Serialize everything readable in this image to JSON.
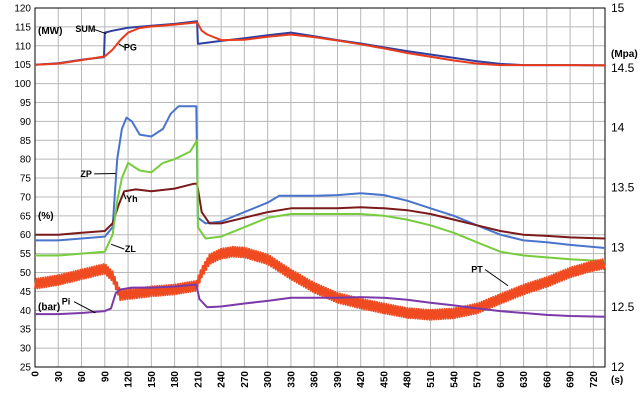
{
  "chart_data": {
    "type": "line",
    "grid": true,
    "legend": "none",
    "x_unit": "(s)",
    "x_ticks": [
      0,
      30,
      60,
      90,
      120,
      150,
      180,
      210,
      240,
      270,
      300,
      330,
      360,
      390,
      420,
      450,
      480,
      510,
      540,
      570,
      600,
      630,
      660,
      690,
      720
    ],
    "left_axis": {
      "ticks": [
        25,
        30,
        35,
        40,
        45,
        50,
        55,
        60,
        65,
        70,
        75,
        80,
        85,
        90,
        95,
        100,
        105,
        110,
        115,
        120
      ],
      "range": [
        25,
        120
      ]
    },
    "right_axis": {
      "ticks": [
        "12",
        "12.5",
        "13",
        "13.5",
        "14",
        "14.5",
        "15"
      ],
      "range": [
        12,
        15
      ]
    },
    "unit_labels": {
      "mw": "(MW)",
      "pct": "(%)",
      "bar": "(bar)",
      "mpa": "(Mpa)"
    },
    "series": [
      {
        "name": "SUM",
        "color": "#2e3fa0",
        "points": [
          [
            0,
            105
          ],
          [
            30,
            105.4
          ],
          [
            60,
            106.3
          ],
          [
            89,
            107
          ],
          [
            90,
            113.5
          ],
          [
            100,
            114
          ],
          [
            120,
            114.8
          ],
          [
            150,
            115.3
          ],
          [
            180,
            115.8
          ],
          [
            209,
            116.5
          ],
          [
            210,
            110.5
          ],
          [
            240,
            111.3
          ],
          [
            270,
            112
          ],
          [
            300,
            112.8
          ],
          [
            330,
            113.5
          ],
          [
            360,
            112.5
          ],
          [
            390,
            111.5
          ],
          [
            420,
            110.6
          ],
          [
            450,
            109.6
          ],
          [
            480,
            108.6
          ],
          [
            510,
            107.7
          ],
          [
            540,
            106.8
          ],
          [
            570,
            105.9
          ],
          [
            600,
            105.2
          ],
          [
            630,
            104.9
          ],
          [
            660,
            104.9
          ],
          [
            690,
            104.9
          ],
          [
            735,
            104.8
          ]
        ]
      },
      {
        "name": "PG",
        "color": "#e83a1c",
        "points": [
          [
            0,
            105
          ],
          [
            30,
            105.3
          ],
          [
            60,
            106.2
          ],
          [
            90,
            107.2
          ],
          [
            100,
            109
          ],
          [
            110,
            111.5
          ],
          [
            120,
            113.5
          ],
          [
            135,
            114.7
          ],
          [
            150,
            115.1
          ],
          [
            180,
            115.6
          ],
          [
            209,
            116.2
          ],
          [
            215,
            114
          ],
          [
            222,
            113
          ],
          [
            240,
            111.5
          ],
          [
            270,
            111.6
          ],
          [
            300,
            112.4
          ],
          [
            330,
            113
          ],
          [
            360,
            112.3
          ],
          [
            390,
            111.4
          ],
          [
            420,
            110.4
          ],
          [
            450,
            109.3
          ],
          [
            480,
            108.1
          ],
          [
            510,
            107.1
          ],
          [
            540,
            106.1
          ],
          [
            570,
            105.3
          ],
          [
            600,
            104.9
          ],
          [
            630,
            104.9
          ],
          [
            660,
            104.9
          ],
          [
            690,
            104.9
          ],
          [
            735,
            104.8
          ]
        ]
      },
      {
        "name": "ZP",
        "color": "#4a74cc",
        "points": [
          [
            0,
            58.5
          ],
          [
            30,
            58.5
          ],
          [
            60,
            59
          ],
          [
            90,
            59.5
          ],
          [
            100,
            62
          ],
          [
            106,
            80
          ],
          [
            112,
            88
          ],
          [
            118,
            91
          ],
          [
            125,
            90
          ],
          [
            135,
            86.5
          ],
          [
            150,
            86
          ],
          [
            165,
            88
          ],
          [
            175,
            92
          ],
          [
            185,
            94
          ],
          [
            208,
            94
          ],
          [
            210,
            64.5
          ],
          [
            220,
            63
          ],
          [
            240,
            63.5
          ],
          [
            270,
            66
          ],
          [
            300,
            68.5
          ],
          [
            315,
            70.3
          ],
          [
            330,
            70.3
          ],
          [
            360,
            70.3
          ],
          [
            390,
            70.5
          ],
          [
            420,
            71
          ],
          [
            450,
            70.5
          ],
          [
            480,
            69
          ],
          [
            510,
            67
          ],
          [
            540,
            65
          ],
          [
            570,
            62.5
          ],
          [
            600,
            60
          ],
          [
            630,
            58.5
          ],
          [
            660,
            58
          ],
          [
            690,
            57.3
          ],
          [
            735,
            56.5
          ]
        ]
      },
      {
        "name": "Yh",
        "color": "#7a1a1a",
        "points": [
          [
            0,
            60
          ],
          [
            30,
            60
          ],
          [
            60,
            60.5
          ],
          [
            90,
            61
          ],
          [
            100,
            63
          ],
          [
            108,
            68
          ],
          [
            115,
            71.5
          ],
          [
            130,
            72
          ],
          [
            150,
            71.5
          ],
          [
            180,
            72.2
          ],
          [
            205,
            73.5
          ],
          [
            209,
            73.5
          ],
          [
            215,
            66
          ],
          [
            225,
            63
          ],
          [
            240,
            63
          ],
          [
            270,
            64.5
          ],
          [
            300,
            66
          ],
          [
            330,
            67
          ],
          [
            360,
            67
          ],
          [
            390,
            67
          ],
          [
            420,
            67.3
          ],
          [
            450,
            67
          ],
          [
            480,
            66.5
          ],
          [
            510,
            65.5
          ],
          [
            540,
            64
          ],
          [
            570,
            62.5
          ],
          [
            600,
            61
          ],
          [
            630,
            60
          ],
          [
            660,
            59.7
          ],
          [
            690,
            59.3
          ],
          [
            735,
            59
          ]
        ]
      },
      {
        "name": "ZL",
        "color": "#77cc3e",
        "points": [
          [
            0,
            54.5
          ],
          [
            30,
            54.5
          ],
          [
            60,
            55
          ],
          [
            90,
            55.5
          ],
          [
            100,
            60
          ],
          [
            106,
            69
          ],
          [
            112,
            75
          ],
          [
            120,
            79
          ],
          [
            135,
            77
          ],
          [
            150,
            76.5
          ],
          [
            165,
            79
          ],
          [
            180,
            80
          ],
          [
            200,
            82
          ],
          [
            209,
            85
          ],
          [
            210,
            62
          ],
          [
            220,
            59
          ],
          [
            240,
            59.5
          ],
          [
            270,
            62
          ],
          [
            300,
            64.5
          ],
          [
            330,
            65.5
          ],
          [
            360,
            65.5
          ],
          [
            390,
            65.5
          ],
          [
            420,
            65.5
          ],
          [
            450,
            65
          ],
          [
            480,
            64
          ],
          [
            510,
            62.5
          ],
          [
            540,
            60.5
          ],
          [
            570,
            58
          ],
          [
            600,
            55.5
          ],
          [
            630,
            54.5
          ],
          [
            660,
            54
          ],
          [
            690,
            53.5
          ],
          [
            735,
            53
          ]
        ]
      },
      {
        "name": "PT",
        "color": "#f04a20",
        "noise": 1.3,
        "points": [
          [
            0,
            47
          ],
          [
            30,
            48
          ],
          [
            60,
            49.5
          ],
          [
            90,
            51
          ],
          [
            100,
            49
          ],
          [
            110,
            44
          ],
          [
            130,
            44.5
          ],
          [
            150,
            45
          ],
          [
            180,
            45.5
          ],
          [
            208,
            46.5
          ],
          [
            215,
            50
          ],
          [
            225,
            53.5
          ],
          [
            240,
            55
          ],
          [
            255,
            55.5
          ],
          [
            270,
            55.3
          ],
          [
            300,
            53.5
          ],
          [
            330,
            49.5
          ],
          [
            360,
            46
          ],
          [
            390,
            43.3
          ],
          [
            420,
            41.8
          ],
          [
            450,
            40.5
          ],
          [
            480,
            39.3
          ],
          [
            510,
            38.8
          ],
          [
            540,
            39.2
          ],
          [
            570,
            40.5
          ],
          [
            600,
            43
          ],
          [
            630,
            45.5
          ],
          [
            660,
            47.5
          ],
          [
            690,
            50
          ],
          [
            720,
            51.8
          ],
          [
            735,
            52.3
          ]
        ]
      },
      {
        "name": "Pi",
        "color": "#7a3aaa",
        "points": [
          [
            0,
            39
          ],
          [
            30,
            39
          ],
          [
            60,
            39.3
          ],
          [
            90,
            39.8
          ],
          [
            98,
            40.5
          ],
          [
            104,
            44.5
          ],
          [
            110,
            45.5
          ],
          [
            125,
            46
          ],
          [
            150,
            46
          ],
          [
            180,
            46.3
          ],
          [
            208,
            46.8
          ],
          [
            212,
            43
          ],
          [
            222,
            40.8
          ],
          [
            240,
            41
          ],
          [
            270,
            41.8
          ],
          [
            300,
            42.5
          ],
          [
            330,
            43.3
          ],
          [
            360,
            43.3
          ],
          [
            390,
            43.3
          ],
          [
            420,
            43.5
          ],
          [
            450,
            43.3
          ],
          [
            480,
            42.8
          ],
          [
            510,
            42
          ],
          [
            540,
            41.3
          ],
          [
            570,
            40.5
          ],
          [
            600,
            39.8
          ],
          [
            630,
            39.3
          ],
          [
            660,
            38.8
          ],
          [
            690,
            38.5
          ],
          [
            735,
            38.3
          ]
        ]
      }
    ],
    "annotations": [
      {
        "text": "SUM",
        "at": [
          65,
          113.6
        ],
        "to": [
          92,
          113.2
        ]
      },
      {
        "text": "PG",
        "at": [
          123,
          108.8
        ],
        "to": [
          108,
          110.5
        ]
      },
      {
        "text": "ZP",
        "at": [
          66,
          75.3
        ],
        "to": [
          104,
          76.2
        ]
      },
      {
        "text": "Yh",
        "at": [
          125,
          68.6
        ],
        "to": [
          114,
          71.2
        ]
      },
      {
        "text": "ZL",
        "at": [
          123,
          55.4
        ],
        "to": [
          98,
          57.5
        ]
      },
      {
        "text": "PT",
        "at": [
          570,
          50
        ],
        "to": [
          610,
          46.5
        ]
      },
      {
        "text": "Pi",
        "at": [
          40,
          41.5
        ],
        "to": [
          78,
          39.3
        ]
      }
    ]
  }
}
